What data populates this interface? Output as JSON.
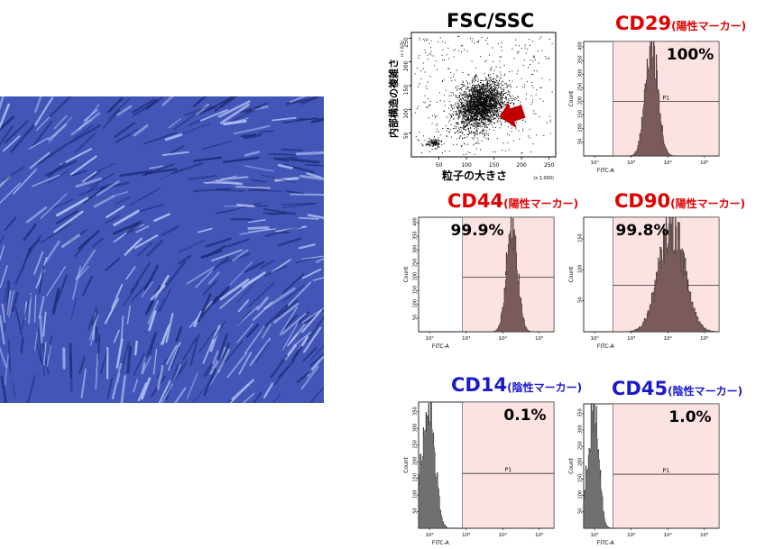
{
  "colors": {
    "positive": "#e00000",
    "negative": "#1a1acc",
    "gate_fill": "#fde2e2",
    "histogram_fill": "#7a5a5a",
    "histogram_fill_negative": "#707070",
    "micrograph": "#4356b8"
  },
  "micrograph": {
    "subject": "cell culture phase contrast image"
  },
  "chart_data": [
    {
      "type": "scatter",
      "title": "FSC/SSC",
      "xlabel": "粒子の大きさ",
      "ylabel": "内部構造の複雑さ",
      "x_unit": "(x 1,000)",
      "y_unit": "(x 1,000)",
      "xlim": [
        0,
        262
      ],
      "ylim": [
        0,
        262
      ],
      "x_ticks": [
        "50",
        "100",
        "150",
        "200",
        "250"
      ],
      "y_ticks": [
        "50",
        "100",
        "150",
        "200",
        "250"
      ],
      "clusters": [
        {
          "name": "main",
          "center": [
            125,
            110
          ],
          "spread": [
            40,
            45
          ]
        },
        {
          "name": "debris",
          "center": [
            40,
            30
          ],
          "spread": [
            12,
            8
          ]
        }
      ]
    },
    {
      "type": "histogram",
      "title": "CD29",
      "subtitle": "(陽性マーカー)",
      "marker_type": "positive",
      "percent": "100%",
      "xlabel": "FITC-A",
      "ylabel": "Count",
      "y_ticks": [
        "50",
        "100",
        "150",
        "200",
        "250",
        "300",
        "350",
        "400"
      ],
      "x_ticks": [
        "10²",
        "10³",
        "10⁴",
        "10⁵"
      ],
      "xlim": [
        1.7,
        5.4
      ],
      "ylim": [
        0,
        420
      ],
      "gate_label": "P1",
      "gate_x": [
        2.5,
        5.4
      ],
      "gate_y": 200,
      "peak_x": 3.55,
      "peak_height": 400,
      "peak_width": 0.17
    },
    {
      "type": "histogram",
      "title": "CD44",
      "subtitle": "(陽性マーカー)",
      "marker_type": "positive",
      "percent": "99.9%",
      "xlabel": "FITC-A",
      "ylabel": "Count",
      "y_ticks": [
        "50",
        "100",
        "150",
        "200",
        "250",
        "300",
        "350",
        "400"
      ],
      "x_ticks": [
        "10²",
        "10³",
        "10⁴",
        "10⁵"
      ],
      "xlim": [
        1.7,
        5.4
      ],
      "ylim": [
        0,
        420
      ],
      "gate_label": "P1",
      "gate_x": [
        2.9,
        5.4
      ],
      "gate_y": 200,
      "peak_x": 4.25,
      "peak_height": 400,
      "peak_width": 0.15
    },
    {
      "type": "histogram",
      "title": "CD90",
      "subtitle": "(陽性マーカー)",
      "marker_type": "positive",
      "percent": "99.8%",
      "xlabel": "FITC-A",
      "ylabel": "Count",
      "y_ticks": [
        "50",
        "100",
        "150"
      ],
      "x_ticks": [
        "10²",
        "10³",
        "10⁴",
        "10⁵"
      ],
      "xlim": [
        1.7,
        5.4
      ],
      "ylim": [
        0,
        185
      ],
      "gate_label": "P1",
      "gate_x": [
        2.5,
        5.4
      ],
      "gate_y": 75,
      "peak_x": 4.1,
      "peak_height": 170,
      "peak_width": 0.35
    },
    {
      "type": "histogram",
      "title": "CD14",
      "subtitle": "(陰性マーカー)",
      "marker_type": "negative",
      "percent": "0.1%",
      "xlabel": "FITC-A",
      "ylabel": "Count",
      "y_ticks": [
        "50",
        "100",
        "150",
        "200",
        "250",
        "300",
        "350"
      ],
      "x_ticks": [
        "10²",
        "10³",
        "10⁴",
        "10⁵"
      ],
      "xlim": [
        1.7,
        5.4
      ],
      "ylim": [
        0,
        380
      ],
      "gate_label": "P1",
      "gate_x": [
        2.9,
        5.4
      ],
      "gate_y": 165,
      "peak_x": 2.0,
      "peak_height": 350,
      "peak_width": 0.15
    },
    {
      "type": "histogram",
      "title": "CD45",
      "subtitle": "(陰性マーカー)",
      "marker_type": "negative",
      "percent": "1.0%",
      "xlabel": "FITC-A",
      "ylabel": "Count",
      "y_ticks": [
        "50",
        "100",
        "150",
        "200",
        "250",
        "300",
        "350"
      ],
      "x_ticks": [
        "10²",
        "10³",
        "10⁴",
        "10⁵"
      ],
      "xlim": [
        1.7,
        5.4
      ],
      "ylim": [
        0,
        380
      ],
      "gate_label": "P1",
      "gate_x": [
        2.5,
        5.4
      ],
      "gate_y": 165,
      "peak_x": 2.0,
      "peak_height": 360,
      "peak_width": 0.12
    }
  ]
}
